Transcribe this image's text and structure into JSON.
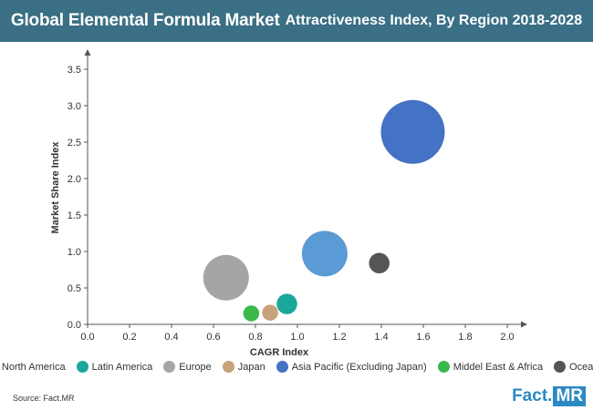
{
  "title": {
    "main": "Global Elemental Formula Market",
    "sub": "Attractiveness Index, By Region 2018-2028"
  },
  "chart_data": {
    "type": "scatter",
    "xlabel": "CAGR Index",
    "ylabel": "Market Share Index",
    "xlim": [
      0.0,
      2.0
    ],
    "ylim": [
      0.0,
      3.5
    ],
    "x_ticks": [
      "0.0",
      "0.2",
      "0.4",
      "0.6",
      "0.8",
      "1.0",
      "1.2",
      "1.4",
      "1.6",
      "1.8",
      "2.0"
    ],
    "y_ticks": [
      "0.0",
      "0.5",
      "1.0",
      "1.5",
      "2.0",
      "2.5",
      "3.0",
      "3.5"
    ],
    "grid": false,
    "legend_position": "bottom",
    "series": [
      {
        "name": "North America",
        "x": 1.13,
        "y": 0.97,
        "size": 1.0,
        "color": "#5b9bd5"
      },
      {
        "name": "Latin America",
        "x": 0.95,
        "y": 0.28,
        "size": 0.45,
        "color": "#1aa89a"
      },
      {
        "name": "Europe",
        "x": 0.66,
        "y": 0.64,
        "size": 1.0,
        "color": "#a5a5a5"
      },
      {
        "name": "Japan",
        "x": 0.87,
        "y": 0.16,
        "size": 0.35,
        "color": "#c8a27a"
      },
      {
        "name": "Asia Pacific (Excluding Japan)",
        "x": 1.55,
        "y": 2.64,
        "size": 1.4,
        "color": "#4472c4"
      },
      {
        "name": "Middel East & Africa",
        "x": 0.78,
        "y": 0.15,
        "size": 0.35,
        "color": "#3cb84a"
      },
      {
        "name": "Oceania",
        "x": 1.39,
        "y": 0.84,
        "size": 0.45,
        "color": "#555555"
      }
    ]
  },
  "source": "Source: Fact.MR",
  "logo": {
    "fact": "Fact.",
    "mr": "MR"
  }
}
